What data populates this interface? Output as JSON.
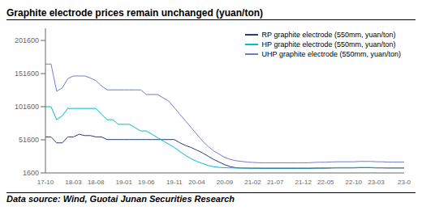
{
  "chart_data": {
    "type": "line",
    "title": "Graphite electrode prices remain unchanged (yuan/ton)",
    "footnote": "Data source: Wind, Guotai Junan Securities Research",
    "categories": [
      "17-10",
      null,
      null,
      null,
      null,
      "18-03",
      null,
      null,
      null,
      "18-08",
      null,
      null,
      null,
      null,
      "19-01",
      null,
      null,
      null,
      "19-06",
      null,
      null,
      null,
      null,
      "19-11",
      null,
      null,
      null,
      "20-04",
      null,
      null,
      null,
      null,
      "20-09",
      null,
      null,
      null,
      null,
      "21-02",
      null,
      null,
      null,
      "21-07",
      null,
      null,
      null,
      null,
      "21-12",
      null,
      null,
      null,
      "22-05",
      null,
      null,
      null,
      null,
      "22-10",
      null,
      null,
      null,
      "23-03",
      null,
      null,
      null,
      null,
      "23-0"
    ],
    "series": [
      {
        "name": "RP graphite electrode (550mm, yuan/ton)",
        "color": "#1f3d7a",
        "values": [
          56000,
          56000,
          47000,
          47000,
          56000,
          56000,
          60000,
          58000,
          58000,
          56000,
          56000,
          52000,
          52000,
          52000,
          52000,
          52000,
          52000,
          52000,
          52000,
          52000,
          52000,
          52000,
          52000,
          52000,
          47000,
          43000,
          40000,
          36000,
          32000,
          27000,
          22000,
          18000,
          14000,
          11000,
          9500,
          9000,
          8800,
          8600,
          8600,
          8500,
          8500,
          8500,
          8500,
          8500,
          8500,
          8500,
          8500,
          8500,
          8700,
          8800,
          8800,
          9000,
          9200,
          9200,
          9200,
          9200,
          9500,
          9500,
          9500,
          9200,
          9200,
          9000,
          9000,
          9000,
          9000
        ]
      },
      {
        "name": "HP graphite electrode (550mm, yuan/ton)",
        "color": "#00bcd4",
        "values": [
          101600,
          101600,
          82000,
          88000,
          99000,
          99000,
          99000,
          99000,
          99000,
          99000,
          90000,
          82000,
          82000,
          75000,
          75000,
          75000,
          70000,
          65000,
          65000,
          60000,
          55000,
          50000,
          45000,
          40000,
          34000,
          28000,
          23000,
          19000,
          16000,
          13000,
          11000,
          10000,
          9500,
          9200,
          9000,
          9000,
          9000,
          9000,
          9000,
          9000,
          9000,
          9000,
          9000,
          9000,
          9000,
          9000,
          9000,
          9000,
          9200,
          9300,
          9300,
          9500,
          9700,
          9700,
          9700,
          9700,
          9900,
          9900,
          9900,
          9600,
          9600,
          9400,
          9400,
          9400,
          9400
        ]
      },
      {
        "name": "UHP graphite electrode (550mm, yuan/ton)",
        "color": "#6a7fce",
        "values": [
          166000,
          166000,
          125000,
          130000,
          144000,
          148000,
          148000,
          148000,
          145000,
          141000,
          133000,
          127000,
          127000,
          127000,
          127000,
          127000,
          127000,
          127000,
          120000,
          120000,
          120000,
          115000,
          110000,
          100000,
          90000,
          80000,
          70000,
          60000,
          50000,
          42000,
          35000,
          30000,
          25000,
          22000,
          20000,
          19000,
          18000,
          17500,
          17000,
          17000,
          17000,
          17000,
          17000,
          17000,
          17000,
          17000,
          17000,
          17000,
          17500,
          17800,
          17800,
          18200,
          18500,
          18500,
          18500,
          18500,
          19000,
          19000,
          19000,
          18500,
          18500,
          18000,
          18000,
          18000,
          18000
        ]
      }
    ],
    "ylim": [
      1600,
      220000
    ],
    "yticks": [
      1600,
      51600,
      101600,
      151600,
      201600
    ],
    "grid": false,
    "legend": "upper right"
  }
}
